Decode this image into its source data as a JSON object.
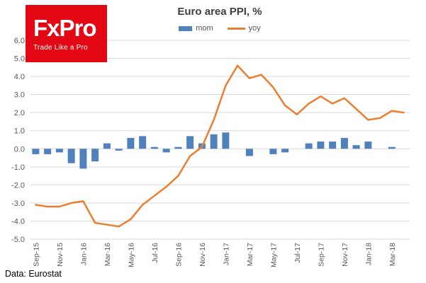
{
  "logo": {
    "brand": "FxPro",
    "tagline": "Trade Like a Pro",
    "bg_color": "#e30613",
    "text_color": "#ffffff"
  },
  "footer": {
    "source": "Data: Eurostat"
  },
  "chart_data": {
    "type": "bar",
    "title": "Euro area PPI, %",
    "xlabel": "",
    "ylabel": "",
    "ylim": [
      -5,
      6
    ],
    "y_tick_step": 1,
    "grid": "horizontal",
    "gridline_color": "#d9d9d9",
    "axis_label_color": "#595959",
    "legend_position": "top",
    "categories": [
      "Sep-15",
      "Oct-15",
      "Nov-15",
      "Dec-15",
      "Jan-16",
      "Feb-16",
      "Mar-16",
      "Apr-16",
      "May-16",
      "Jun-16",
      "Jul-16",
      "Aug-16",
      "Sep-16",
      "Oct-16",
      "Nov-16",
      "Dec-16",
      "Jan-17",
      "Feb-17",
      "Mar-17",
      "Apr-17",
      "May-17",
      "Jun-17",
      "Jul-17",
      "Aug-17",
      "Sep-17",
      "Oct-17",
      "Nov-17",
      "Dec-17",
      "Jan-18",
      "Feb-18",
      "Mar-18",
      "Apr-18"
    ],
    "x_tick_labels_shown_every": 2,
    "series": [
      {
        "name": "mom",
        "type": "bar",
        "color": "#4f81bd",
        "values": [
          -0.3,
          -0.3,
          -0.2,
          -0.8,
          -1.1,
          -0.7,
          0.3,
          -0.1,
          0.6,
          0.7,
          0.1,
          -0.2,
          0.1,
          0.7,
          0.3,
          0.8,
          0.9,
          0.0,
          -0.4,
          0.0,
          -0.3,
          -0.2,
          0.0,
          0.3,
          0.4,
          0.4,
          0.6,
          0.2,
          0.4,
          0.0,
          0.1,
          0.0
        ]
      },
      {
        "name": "yoy",
        "type": "line",
        "color": "#ed7d31",
        "values": [
          -3.1,
          -3.2,
          -3.2,
          -3.0,
          -2.9,
          -4.1,
          -4.2,
          -4.3,
          -3.9,
          -3.1,
          -2.6,
          -2.1,
          -1.5,
          -0.4,
          0.1,
          1.6,
          3.5,
          4.6,
          3.9,
          4.1,
          3.4,
          2.4,
          1.9,
          2.5,
          2.9,
          2.5,
          2.8,
          2.2,
          1.6,
          1.7,
          2.1,
          2.0
        ]
      }
    ]
  }
}
